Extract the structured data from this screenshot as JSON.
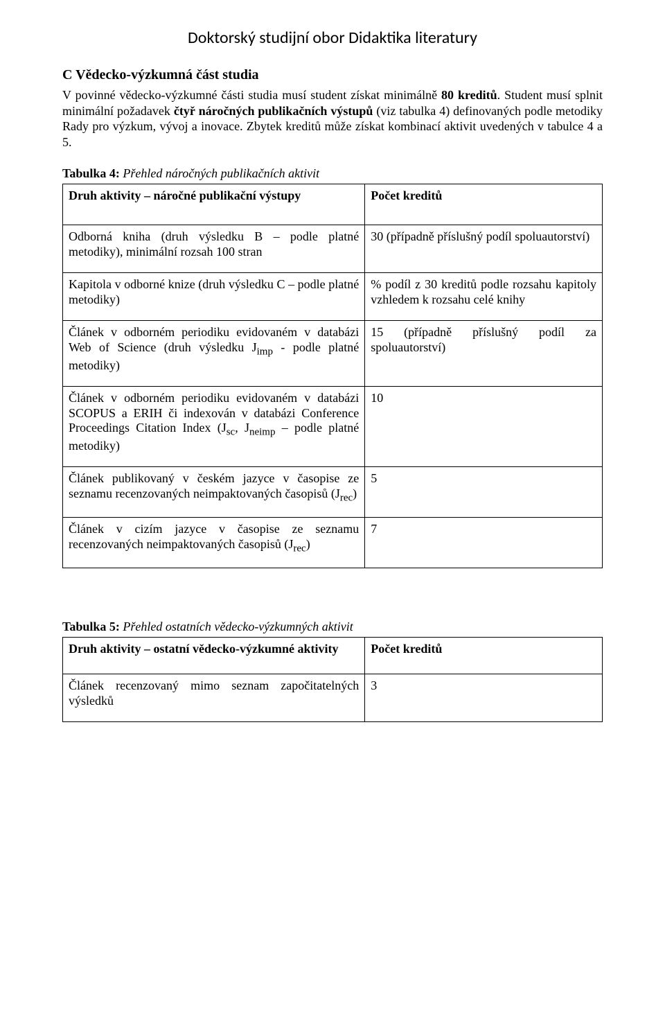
{
  "header": {
    "title": "Doktorský studijní obor Didaktika literatury"
  },
  "section": {
    "heading": "C Vědecko-výzkumná část studia",
    "p1a": "V povinné vědecko-výzkumné části studia musí student získat minimálně ",
    "p1b": "80 kreditů",
    "p1c": ". Student musí splnit minimální požadavek ",
    "p1d": "čtyř náročných publikačních výstupů",
    "p1e": " (viz tabulka 4) definovaných podle metodiky Rady pro výzkum, vývoj a inovace. Zbytek kreditů může získat kombinací aktivit uvedených v tabulce 4 a 5."
  },
  "table4": {
    "caption_bold": "Tabulka 4:",
    "caption_italic": " Přehled náročných publikačních aktivit",
    "header_left": "Druh aktivity – náročné publikační výstupy",
    "header_right": "Počet kreditů",
    "rows": [
      {
        "left": "Odborná kniha (druh výsledku B – podle platné metodiky), minimální rozsah 100 stran",
        "right": "30 (případně příslušný podíl spoluautorství)"
      },
      {
        "left": "Kapitola v odborné knize (druh výsledku C – podle platné metodiky)",
        "right": "% podíl z 30 kreditů podle rozsahu kapitoly vzhledem k rozsahu celé knihy"
      },
      {
        "left_html": "Článek v odborném periodiku evidovaném v databázi Web of Science (druh výsledku J<sub>imp</sub> - podle platné metodiky)",
        "right": "15 (případně příslušný podíl za spoluautorství)"
      },
      {
        "left_html": "Článek v odborném periodiku evidovaném v databázi SCOPUS a ERIH či indexován v databázi Conference Proceedings Citation Index (J<sub>sc</sub>, J<sub>neimp</sub> – podle platné metodiky)",
        "right": "10"
      },
      {
        "left_html": "Článek publikovaný v českém jazyce v časopise ze seznamu recenzovaných neimpaktovaných časopisů (J<sub>rec</sub>)",
        "right": "5"
      },
      {
        "left_html": "Článek v cizím jazyce v časopise ze seznamu recenzovaných neimpaktovaných časopisů (J<sub>rec</sub>)",
        "right": "7"
      }
    ]
  },
  "table5": {
    "caption_bold": "Tabulka 5:",
    "caption_italic": " Přehled ostatních vědecko-výzkumných aktivit",
    "header_left": "Druh aktivity – ostatní vědecko-výzkumné aktivity",
    "header_right": "Počet kreditů",
    "rows": [
      {
        "left": "Článek recenzovaný mimo seznam započitatelných výsledků",
        "right": "3"
      }
    ]
  }
}
